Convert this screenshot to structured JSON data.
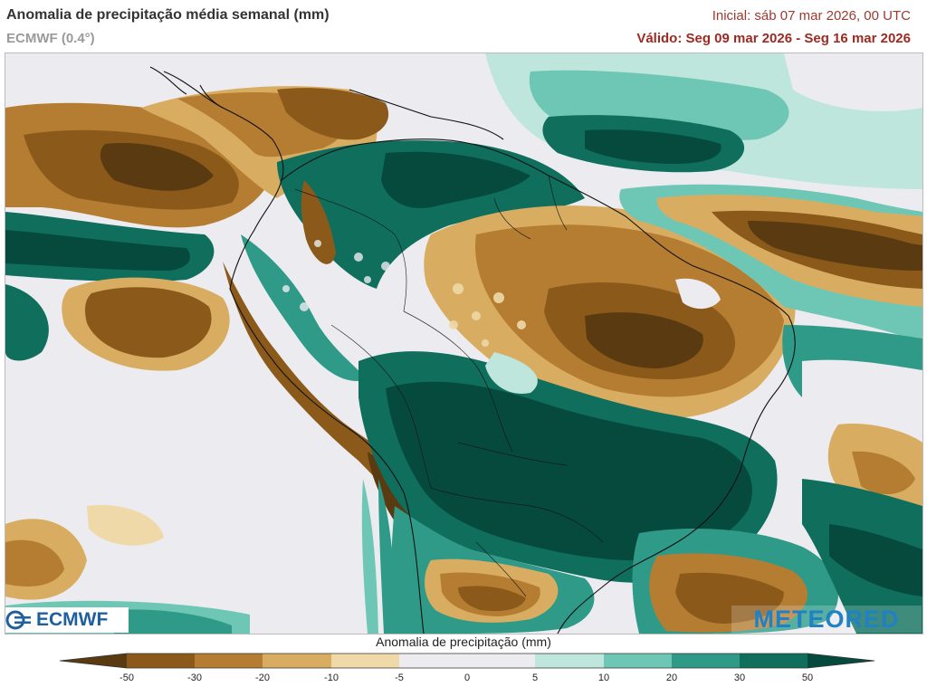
{
  "header": {
    "title": "Anomalia de precipitação média semanal (mm)",
    "model": "ECMWF (0.4°)",
    "initial": "Inicial:  sáb 07 mar 2026, 00 UTC",
    "valid": "Válido: Seg 09 mar 2026 - Seg 16 mar 2026"
  },
  "logos": {
    "ecmwf": "ECMWF",
    "meteored": "METEORED"
  },
  "legend": {
    "title": "Anomalia de precipitação (mm)",
    "ticks": [
      "-50",
      "-30",
      "-20",
      "-10",
      "-5",
      "0",
      "5",
      "10",
      "20",
      "30",
      "50"
    ],
    "colors": [
      "#5a3a10",
      "#8b5a1b",
      "#b57d32",
      "#d8ad62",
      "#efd9a8",
      "#ececf0",
      "#ececf0",
      "#bfe6dc",
      "#6ec7b4",
      "#2f9a87",
      "#0f6e5c",
      "#064a3e"
    ]
  },
  "map": {
    "palette": {
      "dry_extreme": "#5a3a10",
      "dry_strong": "#8b5a1b",
      "dry_mid": "#b57d32",
      "dry_light": "#d8ad62",
      "dry_faint": "#efd9a8",
      "neutral": "#ececf0",
      "wet_faint": "#bfe6dc",
      "wet_light": "#6ec7b4",
      "wet_mid": "#2f9a87",
      "wet_strong": "#0f6e5c",
      "wet_extreme": "#064a3e"
    }
  }
}
